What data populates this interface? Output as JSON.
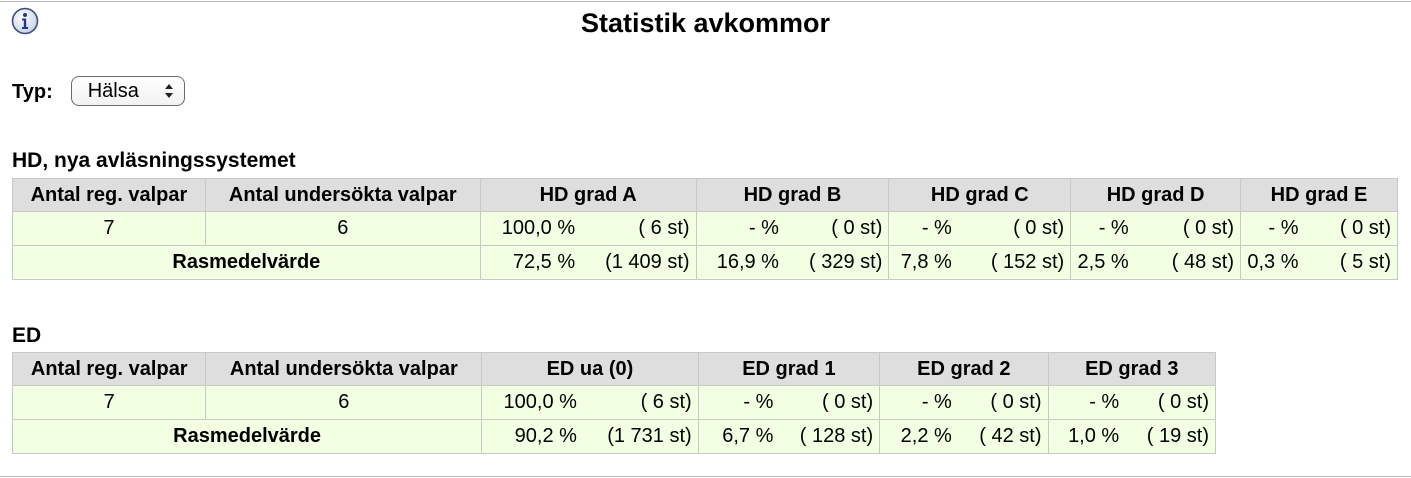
{
  "page": {
    "title": "Statistik avkommor"
  },
  "filter": {
    "label": "Typ:",
    "selected": "Hälsa"
  },
  "hd": {
    "section_title": "HD, nya avläsningssystemet",
    "headers": [
      "Antal reg. valpar",
      "Antal undersökta valpar",
      "HD grad A",
      "HD grad B",
      "HD grad C",
      "HD grad D",
      "HD grad E"
    ],
    "reg": "7",
    "examined": "6",
    "row": [
      {
        "pct": "100,0 %",
        "cnt": "( 6 st)"
      },
      {
        "pct": "- %",
        "cnt": "( 0 st)"
      },
      {
        "pct": "- %",
        "cnt": "( 0 st)"
      },
      {
        "pct": "- %",
        "cnt": "( 0 st)"
      },
      {
        "pct": "- %",
        "cnt": "( 0 st)"
      }
    ],
    "breed_label": "Rasmedelvärde",
    "breed": [
      {
        "pct": "72,5 %",
        "cnt": "(1 409 st)"
      },
      {
        "pct": "16,9 %",
        "cnt": "( 329 st)"
      },
      {
        "pct": "7,8 %",
        "cnt": "( 152 st)"
      },
      {
        "pct": "2,5 %",
        "cnt": "( 48 st)"
      },
      {
        "pct": "0,3 %",
        "cnt": "( 5 st)"
      }
    ]
  },
  "ed": {
    "section_title": "ED",
    "headers": [
      "Antal reg. valpar",
      "Antal undersökta valpar",
      "ED ua (0)",
      "ED grad 1",
      "ED grad 2",
      "ED grad 3"
    ],
    "reg": "7",
    "examined": "6",
    "row": [
      {
        "pct": "100,0 %",
        "cnt": "( 6 st)"
      },
      {
        "pct": "- %",
        "cnt": "( 0 st)"
      },
      {
        "pct": "- %",
        "cnt": "( 0 st)"
      },
      {
        "pct": "- %",
        "cnt": "( 0 st)"
      }
    ],
    "breed_label": "Rasmedelvärde",
    "breed": [
      {
        "pct": "90,2 %",
        "cnt": "(1 731 st)"
      },
      {
        "pct": "6,7 %",
        "cnt": "( 128 st)"
      },
      {
        "pct": "2,2 %",
        "cnt": "( 42 st)"
      },
      {
        "pct": "1,0 %",
        "cnt": "( 19 st)"
      }
    ]
  }
}
